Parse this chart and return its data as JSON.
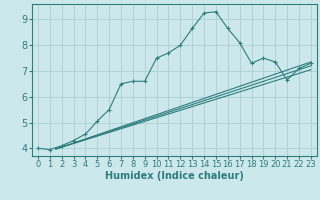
{
  "bg_color": "#cce8ea",
  "line_color": "#2e7d7d",
  "grid_color": "#aacfd4",
  "xlabel": "Humidex (Indice chaleur)",
  "xlabel_fontsize": 7,
  "tick_fontsize": 6,
  "xlim": [
    -0.5,
    23.5
  ],
  "ylim": [
    3.7,
    9.6
  ],
  "yticks": [
    4,
    5,
    6,
    7,
    8,
    9
  ],
  "xticks": [
    0,
    1,
    2,
    3,
    4,
    5,
    6,
    7,
    8,
    9,
    10,
    11,
    12,
    13,
    14,
    15,
    16,
    17,
    18,
    19,
    20,
    21,
    22,
    23
  ],
  "main_series": {
    "x": [
      0,
      1,
      2,
      3,
      4,
      5,
      6,
      7,
      8,
      9,
      10,
      11,
      12,
      13,
      14,
      15,
      16,
      17,
      18,
      19,
      20,
      21,
      22,
      23
    ],
    "y": [
      4.0,
      3.95,
      4.1,
      4.3,
      4.55,
      5.05,
      5.5,
      6.5,
      6.6,
      6.6,
      7.5,
      7.7,
      8.0,
      8.65,
      9.25,
      9.3,
      8.65,
      8.1,
      7.3,
      7.5,
      7.35,
      6.65,
      7.1,
      7.3
    ]
  },
  "straight_lines": [
    {
      "x0": 1.5,
      "y0": 3.97,
      "x1": 23,
      "y1": 7.35
    },
    {
      "x0": 1.5,
      "y0": 3.97,
      "x1": 23,
      "y1": 7.2
    },
    {
      "x0": 1.5,
      "y0": 3.97,
      "x1": 23,
      "y1": 7.05
    }
  ]
}
